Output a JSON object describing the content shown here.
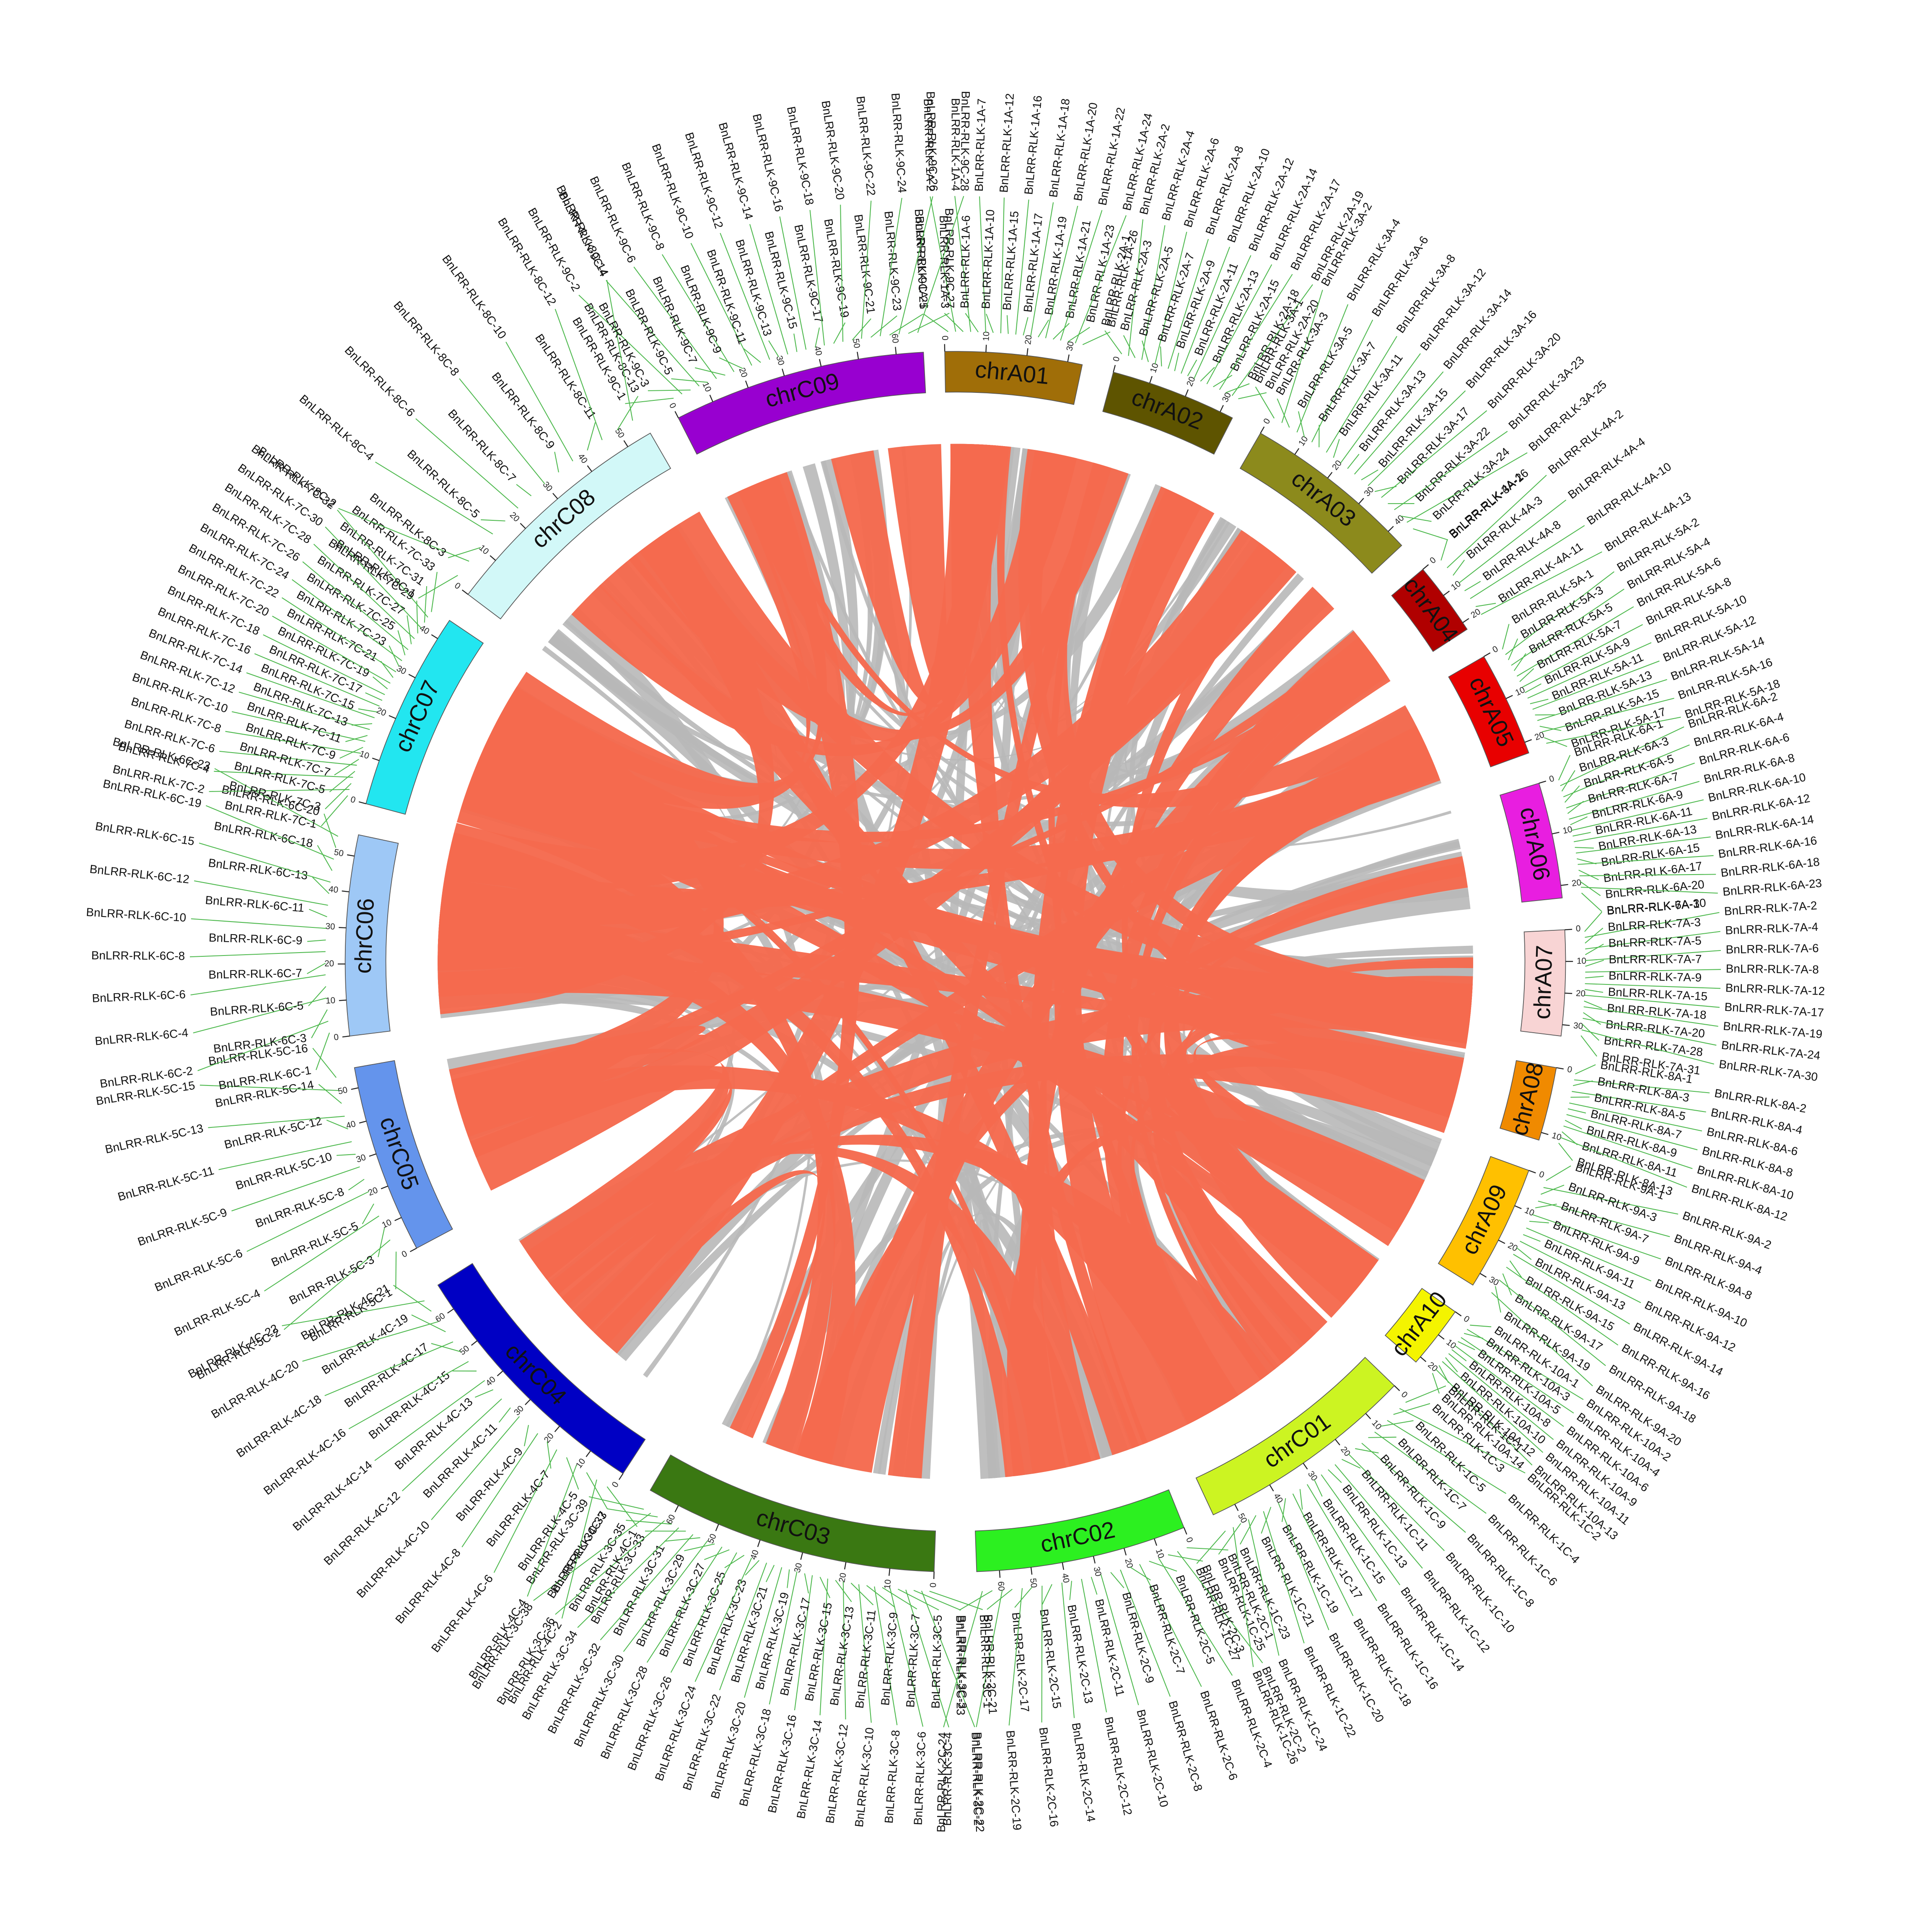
{
  "chromosomes": [
    {
      "name": "chrA01",
      "color": "#a06e08",
      "ticks": [
        0,
        10,
        20,
        30
      ],
      "genes": [
        "BnLRR-RLK-1A-1",
        "BnLRR-RLK-1A-2",
        "BnLRR-RLK-1A-3",
        "BnLRR-RLK-1A-4",
        "BnLRR-RLK-1A-6",
        "BnLRR-RLK-1A-7",
        "BnLRR-RLK-1A-10",
        "BnLRR-RLK-1A-12",
        "BnLRR-RLK-1A-15",
        "BnLRR-RLK-1A-16",
        "BnLRR-RLK-1A-17",
        "BnLRR-RLK-1A-18",
        "BnLRR-RLK-1A-19",
        "BnLRR-RLK-1A-20",
        "BnLRR-RLK-1A-21",
        "BnLRR-RLK-1A-22",
        "BnLRR-RLK-1A-23",
        "BnLRR-RLK-1A-24",
        "BnLRR-RLK-1A-26"
      ]
    },
    {
      "name": "chrA02",
      "color": "#5e5400",
      "ticks": [
        0,
        10,
        20,
        30
      ],
      "genes": [
        "BnLRR-RLK-2A-1",
        "BnLRR-RLK-2A-2",
        "BnLRR-RLK-2A-3",
        "BnLRR-RLK-2A-4",
        "BnLRR-RLK-2A-5",
        "BnLRR-RLK-2A-6",
        "BnLRR-RLK-2A-7",
        "BnLRR-RLK-2A-8",
        "BnLRR-RLK-2A-9",
        "BnLRR-RLK-2A-10",
        "BnLRR-RLK-2A-11",
        "BnLRR-RLK-2A-12",
        "BnLRR-RLK-2A-13",
        "BnLRR-RLK-2A-14",
        "BnLRR-RLK-2A-15",
        "BnLRR-RLK-2A-17",
        "BnLRR-RLK-2A-18",
        "BnLRR-RLK-2A-19",
        "BnLRR-RLK-2A-20"
      ]
    },
    {
      "name": "chrA03",
      "color": "#8c8a1c",
      "ticks": [
        0,
        10,
        20,
        30,
        40
      ],
      "genes": [
        "BnLRR-RLK-3A-1",
        "BnLRR-RLK-3A-2",
        "BnLRR-RLK-3A-3",
        "BnLRR-RLK-3A-4",
        "BnLRR-RLK-3A-5",
        "BnLRR-RLK-3A-6",
        "BnLRR-RLK-3A-7",
        "BnLRR-RLK-3A-8",
        "BnLRR-RLK-3A-11",
        "BnLRR-RLK-3A-12",
        "BnLRR-RLK-3A-13",
        "BnLRR-RLK-3A-14",
        "BnLRR-RLK-3A-15",
        "BnLRR-RLK-3A-16",
        "BnLRR-RLK-3A-17",
        "BnLRR-RLK-3A-20",
        "BnLRR-RLK-3A-22",
        "BnLRR-RLK-3A-23",
        "BnLRR-RLK-3A-24",
        "BnLRR-RLK-3A-25",
        "BnLRR-RLK-3A-26"
      ]
    },
    {
      "name": "chrA04",
      "color": "#b00000",
      "ticks": [
        0,
        10,
        20
      ],
      "genes": [
        "BnLRR-RLK-4A-1",
        "BnLRR-RLK-4A-2",
        "BnLRR-RLK-4A-3",
        "BnLRR-RLK-4A-4",
        "BnLRR-RLK-4A-8",
        "BnLRR-RLK-4A-10",
        "BnLRR-RLK-4A-11",
        "BnLRR-RLK-4A-13"
      ]
    },
    {
      "name": "chrA05",
      "color": "#e80000",
      "ticks": [
        0,
        10,
        20
      ],
      "genes": [
        "BnLRR-RLK-5A-1",
        "BnLRR-RLK-5A-2",
        "BnLRR-RLK-5A-3",
        "BnLRR-RLK-5A-4",
        "BnLRR-RLK-5A-5",
        "BnLRR-RLK-5A-6",
        "BnLRR-RLK-5A-7",
        "BnLRR-RLK-5A-8",
        "BnLRR-RLK-5A-9",
        "BnLRR-RLK-5A-10",
        "BnLRR-RLK-5A-11",
        "BnLRR-RLK-5A-12",
        "BnLRR-RLK-5A-13",
        "BnLRR-RLK-5A-14",
        "BnLRR-RLK-5A-15",
        "BnLRR-RLK-5A-16",
        "BnLRR-RLK-5A-17",
        "BnLRR-RLK-5A-18"
      ]
    },
    {
      "name": "chrA06",
      "color": "#e81ee0",
      "ticks": [
        0,
        10,
        20
      ],
      "genes": [
        "BnLRR-RLK-6A-1",
        "BnLRR-RLK-6A-2",
        "BnLRR-RLK-6A-3",
        "BnLRR-RLK-6A-4",
        "BnLRR-RLK-6A-5",
        "BnLRR-RLK-6A-6",
        "BnLRR-RLK-6A-7",
        "BnLRR-RLK-6A-8",
        "BnLRR-RLK-6A-9",
        "BnLRR-RLK-6A-10",
        "BnLRR-RLK-6A-11",
        "BnLRR-RLK-6A-12",
        "BnLRR-RLK-6A-13",
        "BnLRR-RLK-6A-14",
        "BnLRR-RLK-6A-15",
        "BnLRR-RLK-6A-16",
        "BnLRR-RLK-6A-17",
        "BnLRR-RLK-6A-18",
        "BnLRR-RLK-6A-20",
        "BnLRR-RLK-6A-23",
        "BnLRR-RLK-6A-30"
      ]
    },
    {
      "name": "chrA07",
      "color": "#f8d4d4",
      "ticks": [
        0,
        10,
        20,
        30
      ],
      "genes": [
        "BnLRR-RLK-7A-1",
        "BnLRR-RLK-7A-2",
        "BnLRR-RLK-7A-3",
        "BnLRR-RLK-7A-4",
        "BnLRR-RLK-7A-5",
        "BnLRR-RLK-7A-6",
        "BnLRR-RLK-7A-7",
        "BnLRR-RLK-7A-8",
        "BnLRR-RLK-7A-9",
        "BnLRR-RLK-7A-12",
        "BnLRR-RLK-7A-15",
        "BnLRR-RLK-7A-17",
        "BnLRR-RLK-7A-18",
        "BnLRR-RLK-7A-19",
        "BnLRR-RLK-7A-20",
        "BnLRR-RLK-7A-24",
        "BnLRR-RLK-7A-28",
        "BnLRR-RLK-7A-30",
        "BnLRR-RLK-7A-31"
      ]
    },
    {
      "name": "chrA08",
      "color": "#f08a00",
      "ticks": [
        0,
        10
      ],
      "genes": [
        "BnLRR-RLK-8A-1",
        "BnLRR-RLK-8A-2",
        "BnLRR-RLK-8A-3",
        "BnLRR-RLK-8A-4",
        "BnLRR-RLK-8A-5",
        "BnLRR-RLK-8A-6",
        "BnLRR-RLK-8A-7",
        "BnLRR-RLK-8A-8",
        "BnLRR-RLK-8A-9",
        "BnLRR-RLK-8A-10",
        "BnLRR-RLK-8A-11",
        "BnLRR-RLK-8A-12",
        "BnLRR-RLK-8A-13"
      ]
    },
    {
      "name": "chrA09",
      "color": "#ffc000",
      "ticks": [
        0,
        10,
        20,
        30
      ],
      "genes": [
        "BnLRR-RLK-9A-1",
        "BnLRR-RLK-9A-2",
        "BnLRR-RLK-9A-3",
        "BnLRR-RLK-9A-4",
        "BnLRR-RLK-9A-7",
        "BnLRR-RLK-9A-8",
        "BnLRR-RLK-9A-9",
        "BnLRR-RLK-9A-10",
        "BnLRR-RLK-9A-11",
        "BnLRR-RLK-9A-12",
        "BnLRR-RLK-9A-13",
        "BnLRR-RLK-9A-14",
        "BnLRR-RLK-9A-15",
        "BnLRR-RLK-9A-16",
        "BnLRR-RLK-9A-17",
        "BnLRR-RLK-9A-18",
        "BnLRR-RLK-9A-19",
        "BnLRR-RLK-9A-20"
      ]
    },
    {
      "name": "chrA10",
      "color": "#f4f400",
      "ticks": [
        0,
        10,
        20
      ],
      "genes": [
        "BnLRR-RLK-10A-1",
        "BnLRR-RLK-10A-2",
        "BnLRR-RLK-10A-3",
        "BnLRR-RLK-10A-4",
        "BnLRR-RLK-10A-5",
        "BnLRR-RLK-10A-6",
        "BnLRR-RLK-10A-8",
        "BnLRR-RLK-10A-9",
        "BnLRR-RLK-10A-10",
        "BnLRR-RLK-10A-11",
        "BnLRR-RLK-10A-12",
        "BnLRR-RLK-10A-13",
        "BnLRR-RLK-10A-14"
      ]
    },
    {
      "name": "chrC01",
      "color": "#ccf422",
      "ticks": [
        0,
        10,
        20,
        30,
        40,
        50
      ],
      "genes": [
        "BnLRR-RLK-1C-1",
        "BnLRR-RLK-1C-2",
        "BnLRR-RLK-1C-3",
        "BnLRR-RLK-1C-4",
        "BnLRR-RLK-1C-5",
        "BnLRR-RLK-1C-6",
        "BnLRR-RLK-1C-7",
        "BnLRR-RLK-1C-8",
        "BnLRR-RLK-1C-9",
        "BnLRR-RLK-1C-10",
        "BnLRR-RLK-1C-11",
        "BnLRR-RLK-1C-12",
        "BnLRR-RLK-1C-13",
        "BnLRR-RLK-1C-14",
        "BnLRR-RLK-1C-15",
        "BnLRR-RLK-1C-16",
        "BnLRR-RLK-1C-17",
        "BnLRR-RLK-1C-18",
        "BnLRR-RLK-1C-19",
        "BnLRR-RLK-1C-20",
        "BnLRR-RLK-1C-21",
        "BnLRR-RLK-1C-22",
        "BnLRR-RLK-1C-23",
        "BnLRR-RLK-1C-24",
        "BnLRR-RLK-1C-25",
        "BnLRR-RLK-1C-26",
        "BnLRR-RLK-1C-27"
      ]
    },
    {
      "name": "chrC02",
      "color": "#2cf020",
      "ticks": [
        0,
        10,
        20,
        30,
        40,
        50,
        60
      ],
      "genes": [
        "BnLRR-RLK-2C-1",
        "BnLRR-RLK-2C-2",
        "BnLRR-RLK-2C-3",
        "BnLRR-RLK-2C-4",
        "BnLRR-RLK-2C-5",
        "BnLRR-RLK-2C-6",
        "BnLRR-RLK-2C-7",
        "BnLRR-RLK-2C-8",
        "BnLRR-RLK-2C-9",
        "BnLRR-RLK-2C-10",
        "BnLRR-RLK-2C-11",
        "BnLRR-RLK-2C-12",
        "BnLRR-RLK-2C-13",
        "BnLRR-RLK-2C-14",
        "BnLRR-RLK-2C-15",
        "BnLRR-RLK-2C-16",
        "BnLRR-RLK-2C-17",
        "BnLRR-RLK-2C-19",
        "BnLRR-RLK-2C-21",
        "BnLRR-RLK-2C-22",
        "BnLRR-RLK-2C-23",
        "BnLRR-RLK-2C-24"
      ]
    },
    {
      "name": "chrC03",
      "color": "#3a7812",
      "ticks": [
        0,
        10,
        20,
        30,
        40,
        50,
        60
      ],
      "genes": [
        "BnLRR-RLK-3C-1",
        "BnLRR-RLK-3C-2",
        "BnLRR-RLK-3C-3",
        "BnLRR-RLK-3C-4",
        "BnLRR-RLK-3C-5",
        "BnLRR-RLK-3C-6",
        "BnLRR-RLK-3C-7",
        "BnLRR-RLK-3C-8",
        "BnLRR-RLK-3C-9",
        "BnLRR-RLK-3C-10",
        "BnLRR-RLK-3C-11",
        "BnLRR-RLK-3C-12",
        "BnLRR-RLK-3C-13",
        "BnLRR-RLK-3C-14",
        "BnLRR-RLK-3C-15",
        "BnLRR-RLK-3C-16",
        "BnLRR-RLK-3C-17",
        "BnLRR-RLK-3C-18",
        "BnLRR-RLK-3C-19",
        "BnLRR-RLK-3C-20",
        "BnLRR-RLK-3C-21",
        "BnLRR-RLK-3C-22",
        "BnLRR-RLK-3C-23",
        "BnLRR-RLK-3C-24",
        "BnLRR-RLK-3C-25",
        "BnLRR-RLK-3C-26",
        "BnLRR-RLK-3C-27",
        "BnLRR-RLK-3C-28",
        "BnLRR-RLK-3C-29",
        "BnLRR-RLK-3C-30",
        "BnLRR-RLK-3C-31",
        "BnLRR-RLK-3C-32",
        "BnLRR-RLK-3C-33",
        "BnLRR-RLK-3C-34",
        "BnLRR-RLK-3C-35",
        "BnLRR-RLK-3C-36",
        "BnLRR-RLK-3C-37",
        "BnLRR-RLK-3C-38",
        "BnLRR-RLK-3C-39"
      ]
    },
    {
      "name": "chrC04",
      "color": "#0000c4",
      "ticks": [
        0,
        10,
        20,
        30,
        40,
        50,
        60
      ],
      "genes": [
        "BnLRR-RLK-4C-1",
        "BnLRR-RLK-4C-2",
        "BnLRR-RLK-4C-3",
        "BnLRR-RLK-4C-4",
        "BnLRR-RLK-4C-5",
        "BnLRR-RLK-4C-6",
        "BnLRR-RLK-4C-7",
        "BnLRR-RLK-4C-8",
        "BnLRR-RLK-4C-9",
        "BnLRR-RLK-4C-10",
        "BnLRR-RLK-4C-11",
        "BnLRR-RLK-4C-12",
        "BnLRR-RLK-4C-13",
        "BnLRR-RLK-4C-14",
        "BnLRR-RLK-4C-15",
        "BnLRR-RLK-4C-16",
        "BnLRR-RLK-4C-17",
        "BnLRR-RLK-4C-18",
        "BnLRR-RLK-4C-19",
        "BnLRR-RLK-4C-20",
        "BnLRR-RLK-4C-21",
        "BnLRR-RLK-4C-22"
      ]
    },
    {
      "name": "chrC05",
      "color": "#6494ec",
      "ticks": [
        0,
        10,
        20,
        30,
        40,
        50
      ],
      "genes": [
        "BnLRR-RLK-5C-1",
        "BnLRR-RLK-5C-2",
        "BnLRR-RLK-5C-3",
        "BnLRR-RLK-5C-4",
        "BnLRR-RLK-5C-5",
        "BnLRR-RLK-5C-6",
        "BnLRR-RLK-5C-8",
        "BnLRR-RLK-5C-9",
        "BnLRR-RLK-5C-10",
        "BnLRR-RLK-5C-11",
        "BnLRR-RLK-5C-12",
        "BnLRR-RLK-5C-13",
        "BnLRR-RLK-5C-14",
        "BnLRR-RLK-5C-15",
        "BnLRR-RLK-5C-16"
      ]
    },
    {
      "name": "chrC06",
      "color": "#9ec8f6",
      "ticks": [
        0,
        10,
        20,
        30,
        40,
        50
      ],
      "genes": [
        "BnLRR-RLK-6C-1",
        "BnLRR-RLK-6C-2",
        "BnLRR-RLK-6C-3",
        "BnLRR-RLK-6C-4",
        "BnLRR-RLK-6C-5",
        "BnLRR-RLK-6C-6",
        "BnLRR-RLK-6C-7",
        "BnLRR-RLK-6C-8",
        "BnLRR-RLK-6C-9",
        "BnLRR-RLK-6C-10",
        "BnLRR-RLK-6C-11",
        "BnLRR-RLK-6C-12",
        "BnLRR-RLK-6C-13",
        "BnLRR-RLK-6C-15",
        "BnLRR-RLK-6C-18",
        "BnLRR-RLK-6C-19",
        "BnLRR-RLK-6C-20",
        "BnLRR-RLK-6C-23"
      ]
    },
    {
      "name": "chrC07",
      "color": "#22e6f0",
      "ticks": [
        0,
        10,
        20,
        30,
        40
      ],
      "genes": [
        "BnLRR-RLK-7C-1",
        "BnLRR-RLK-7C-2",
        "BnLRR-RLK-7C-3",
        "BnLRR-RLK-7C-4",
        "BnLRR-RLK-7C-5",
        "BnLRR-RLK-7C-6",
        "BnLRR-RLK-7C-7",
        "BnLRR-RLK-7C-8",
        "BnLRR-RLK-7C-9",
        "BnLRR-RLK-7C-10",
        "BnLRR-RLK-7C-11",
        "BnLRR-RLK-7C-12",
        "BnLRR-RLK-7C-13",
        "BnLRR-RLK-7C-14",
        "BnLRR-RLK-7C-15",
        "BnLRR-RLK-7C-16",
        "BnLRR-RLK-7C-17",
        "BnLRR-RLK-7C-18",
        "BnLRR-RLK-7C-19",
        "BnLRR-RLK-7C-20",
        "BnLRR-RLK-7C-21",
        "BnLRR-RLK-7C-22",
        "BnLRR-RLK-7C-23",
        "BnLRR-RLK-7C-24",
        "BnLRR-RLK-7C-25",
        "BnLRR-RLK-7C-26",
        "BnLRR-RLK-7C-27",
        "BnLRR-RLK-7C-28",
        "BnLRR-RLK-7C-29",
        "BnLRR-RLK-7C-30",
        "BnLRR-RLK-7C-31",
        "BnLRR-RLK-7C-32",
        "BnLRR-RLK-7C-33"
      ]
    },
    {
      "name": "chrC08",
      "color": "#d2f8f8",
      "ticks": [
        0,
        10,
        20,
        30,
        40,
        50
      ],
      "genes": [
        "BnLRR-RLK-8C-1",
        "BnLRR-RLK-8C-2",
        "BnLRR-RLK-8C-3",
        "BnLRR-RLK-8C-4",
        "BnLRR-RLK-8C-5",
        "BnLRR-RLK-8C-6",
        "BnLRR-RLK-8C-7",
        "BnLRR-RLK-8C-8",
        "BnLRR-RLK-8C-9",
        "BnLRR-RLK-8C-10",
        "BnLRR-RLK-8C-11",
        "BnLRR-RLK-8C-12",
        "BnLRR-RLK-8C-13",
        "BnLRR-RLK-8C-14"
      ]
    },
    {
      "name": "chrC09",
      "color": "#9800d0",
      "ticks": [
        0,
        10,
        20,
        30,
        40,
        50,
        60
      ],
      "genes": [
        "BnLRR-RLK-9C-1",
        "BnLRR-RLK-9C-2",
        "BnLRR-RLK-9C-3",
        "BnLRR-RLK-9C-4",
        "BnLRR-RLK-9C-5",
        "BnLRR-RLK-9C-6",
        "BnLRR-RLK-9C-7",
        "BnLRR-RLK-9C-8",
        "BnLRR-RLK-9C-9",
        "BnLRR-RLK-9C-10",
        "BnLRR-RLK-9C-11",
        "BnLRR-RLK-9C-12",
        "BnLRR-RLK-9C-13",
        "BnLRR-RLK-9C-14",
        "BnLRR-RLK-9C-15",
        "BnLRR-RLK-9C-16",
        "BnLRR-RLK-9C-17",
        "BnLRR-RLK-9C-18",
        "BnLRR-RLK-9C-19",
        "BnLRR-RLK-9C-20",
        "BnLRR-RLK-9C-21",
        "BnLRR-RLK-9C-22",
        "BnLRR-RLK-9C-23",
        "BnLRR-RLK-9C-24",
        "BnLRR-RLK-9C-25",
        "BnLRR-RLK-9C-26",
        "BnLRR-RLK-9C-27",
        "BnLRR-RLK-9C-28"
      ]
    }
  ]
}
